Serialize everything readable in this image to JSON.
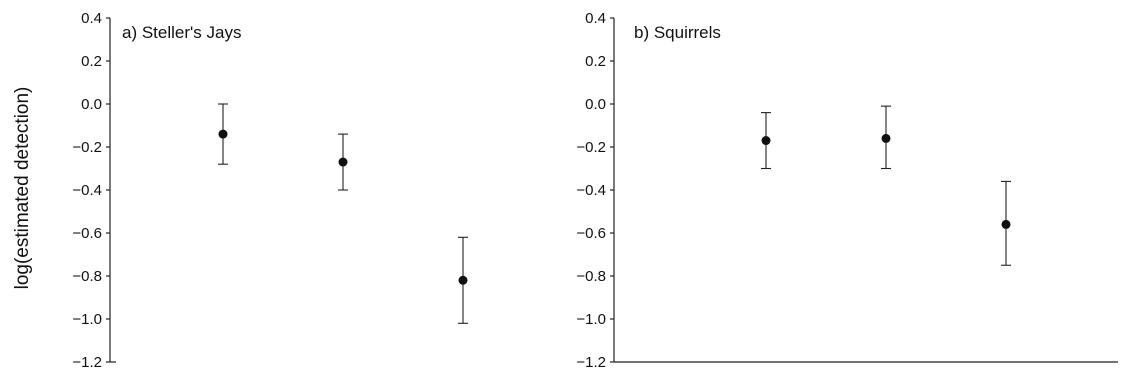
{
  "chart_data": [
    {
      "type": "scatter",
      "title": "a) Steller's Jays",
      "ylabel": "log(estimated detection)",
      "ylim": [
        -1.2,
        0.4
      ],
      "yticks": [
        "0.4",
        "0.2",
        "0.0",
        "-0.2",
        "-0.4",
        "-0.6",
        "-0.8",
        "-1.0",
        "-1.2"
      ],
      "x": [
        1,
        2,
        3
      ],
      "values": [
        -0.14,
        -0.27,
        -0.82
      ],
      "error_upper": [
        0.0,
        -0.14,
        -0.62
      ],
      "error_lower": [
        -0.28,
        -0.4,
        -1.02
      ],
      "grid": false
    },
    {
      "type": "scatter",
      "title": "b) Squirrels",
      "ylim": [
        -1.2,
        0.4
      ],
      "yticks": [
        "0.4",
        "0.2",
        "0.0",
        "-0.2",
        "-0.4",
        "-0.6",
        "-0.8",
        "-1.0",
        "-1.2"
      ],
      "x": [
        1,
        2,
        3
      ],
      "values": [
        -0.17,
        -0.16,
        -0.56
      ],
      "error_upper": [
        -0.04,
        -0.01,
        -0.36
      ],
      "error_lower": [
        -0.3,
        -0.3,
        -0.75
      ],
      "grid": false
    }
  ]
}
